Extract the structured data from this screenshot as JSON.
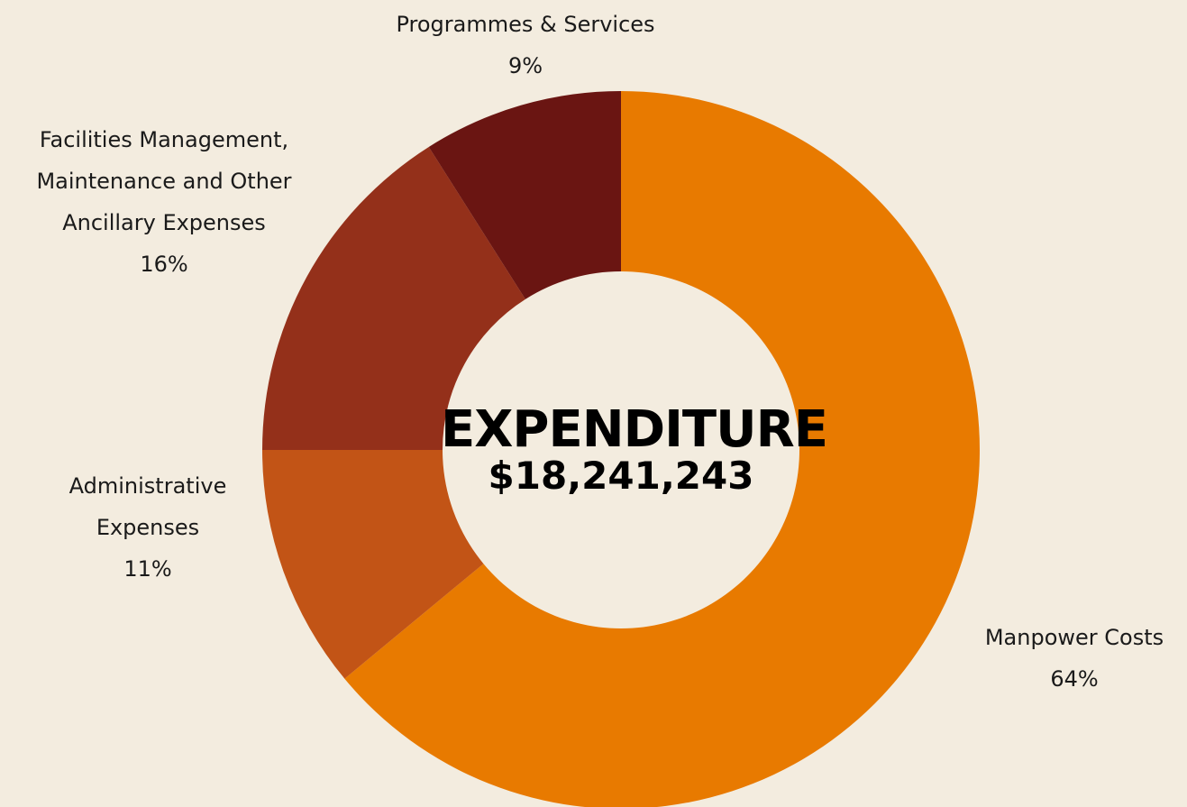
{
  "chart_data": {
    "type": "donut",
    "center_title": "EXPENDITURE",
    "center_value": "$18,241,243",
    "categories": [
      "Manpower Costs",
      "Administrative Expenses",
      "Facilities Management, Maintenance and Other Ancillary Expenses",
      "Programmes & Services"
    ],
    "values": [
      64,
      11,
      16,
      9
    ],
    "value_labels": [
      "64%",
      "11%",
      "16%",
      "9%"
    ],
    "colors": [
      "#e87a00",
      "#c25416",
      "#94301a",
      "#6a1512"
    ]
  }
}
